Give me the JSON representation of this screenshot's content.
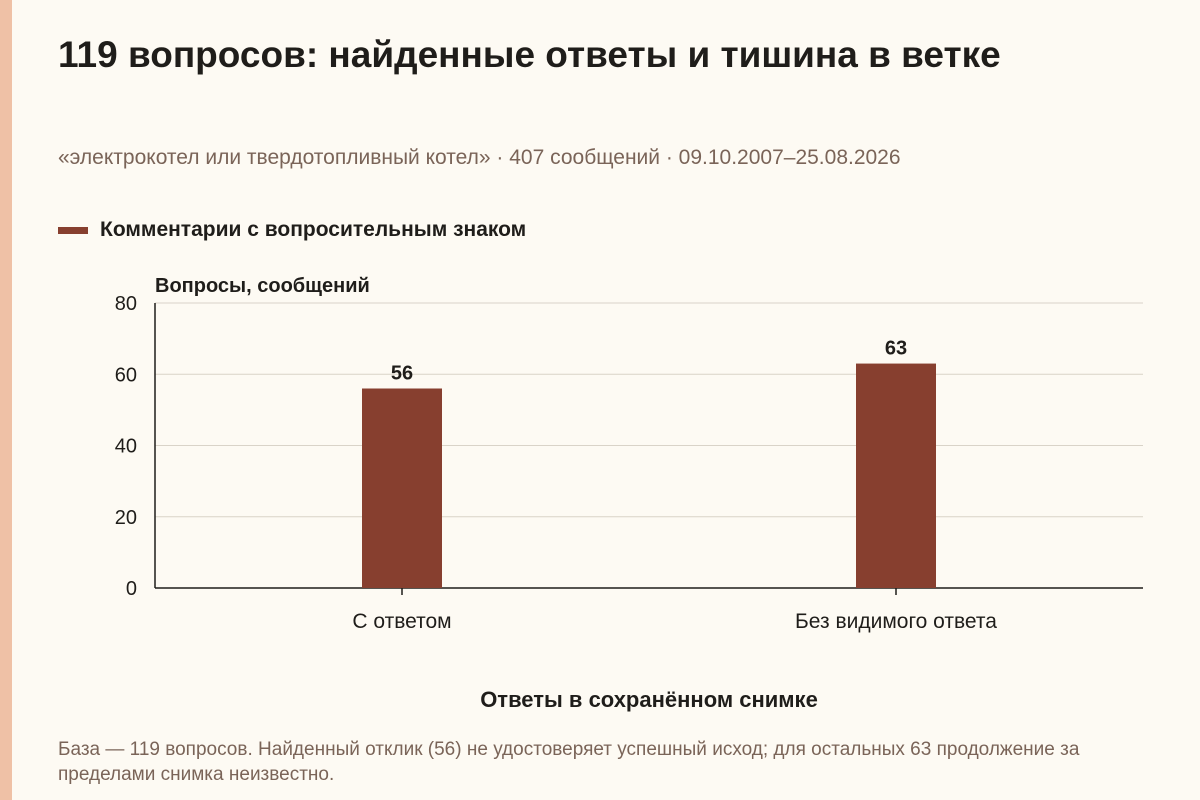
{
  "page": {
    "title": "119 вопросов: найденные ответы и тишина в ветке",
    "subtitle": "«электрокотел или твердотопливный котел» · 407 сообщений · 09.10.2007–25.08.2026",
    "note": "База — 119 вопросов. Найденный отклик (56) не удостоверяет успешный исход; для остальных 63 продолжение за пределами снимка неизвестно."
  },
  "colors": {
    "accent_strip": "#efc1a6",
    "bar": "#873f2f",
    "background": "#fdfaf3"
  },
  "chart_data": {
    "type": "bar",
    "categories": [
      "С ответом",
      "Без видимого ответа"
    ],
    "series": [
      {
        "name": "Комментарии с вопросительным знаком",
        "values": [
          56,
          63
        ]
      }
    ],
    "data_labels": [
      "56",
      "63"
    ],
    "ylabel": "Вопросы, сообщений",
    "xlabel": "Ответы в сохранённом снимке",
    "ylim": [
      0,
      80
    ],
    "yticks": [
      0,
      20,
      40,
      60,
      80
    ],
    "grid": true,
    "legend_position": "top-left"
  }
}
